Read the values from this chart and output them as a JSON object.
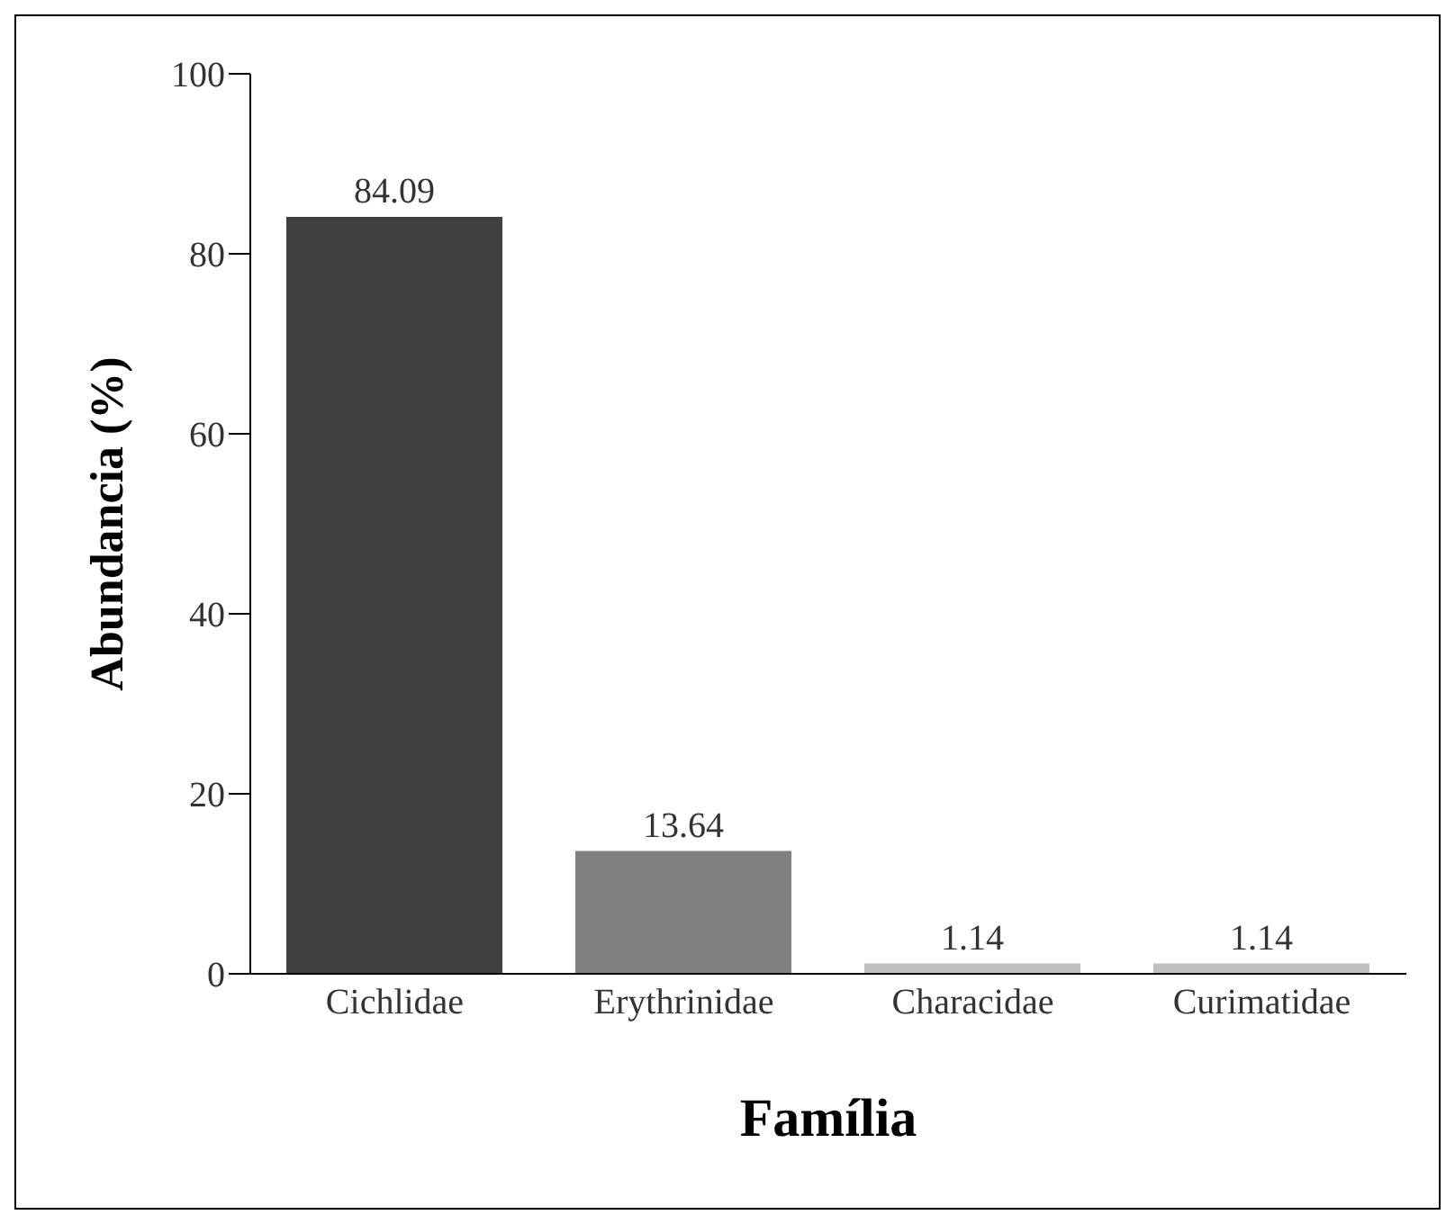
{
  "chart_data": {
    "type": "bar",
    "xlabel": "Família",
    "ylabel": "Abundancia (%)",
    "categories": [
      "Cichlidae",
      "Erythrinidae",
      "Characidae",
      "Curimatidae"
    ],
    "values": [
      84.09,
      13.64,
      1.14,
      1.14
    ],
    "colors": [
      "#404040",
      "#808080",
      "#c0c0c0",
      "#c0c0c0"
    ],
    "ylim": [
      0,
      100
    ],
    "yticks": [
      0,
      20,
      40,
      60,
      80,
      100
    ],
    "grid": false,
    "data_labels": true
  }
}
